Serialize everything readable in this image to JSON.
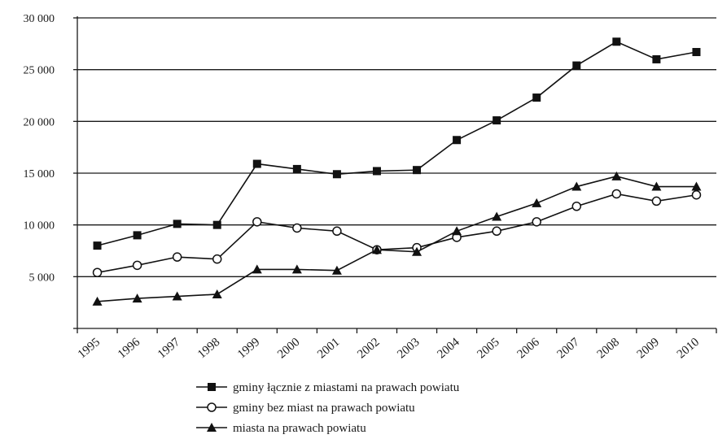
{
  "chart_data": {
    "type": "line",
    "x": [
      "1995",
      "1996",
      "1997",
      "1998",
      "1999",
      "2000",
      "2001",
      "2002",
      "2003",
      "2004",
      "2005",
      "2006",
      "2007",
      "2008",
      "2009",
      "2010"
    ],
    "ylim": [
      0,
      30000
    ],
    "yticks": [
      5000,
      10000,
      15000,
      20000,
      25000,
      30000
    ],
    "ytick_labels": [
      "5 000",
      "10 000",
      "15 000",
      "20 000",
      "25 000",
      "30 000"
    ],
    "grid": true,
    "legend_position": "bottom",
    "series": [
      {
        "name": "gminy łącznie z miastami na prawach powiatu",
        "marker": "square-filled",
        "values": [
          8000,
          9000,
          10100,
          10000,
          15900,
          15400,
          14900,
          15200,
          15300,
          18200,
          20100,
          22300,
          25400,
          27700,
          26000,
          26700
        ]
      },
      {
        "name": "gminy bez miast na prawach powiatu",
        "marker": "circle-open",
        "values": [
          5400,
          6100,
          6900,
          6700,
          10300,
          9700,
          9400,
          7600,
          7800,
          8800,
          9400,
          10300,
          11800,
          13000,
          12300,
          12900
        ]
      },
      {
        "name": "miasta na prawach powiatu",
        "marker": "triangle-filled",
        "values": [
          2600,
          2900,
          3100,
          3300,
          5700,
          5700,
          5600,
          7600,
          7400,
          9400,
          10800,
          12100,
          13700,
          14700,
          13700,
          13700
        ]
      }
    ]
  }
}
